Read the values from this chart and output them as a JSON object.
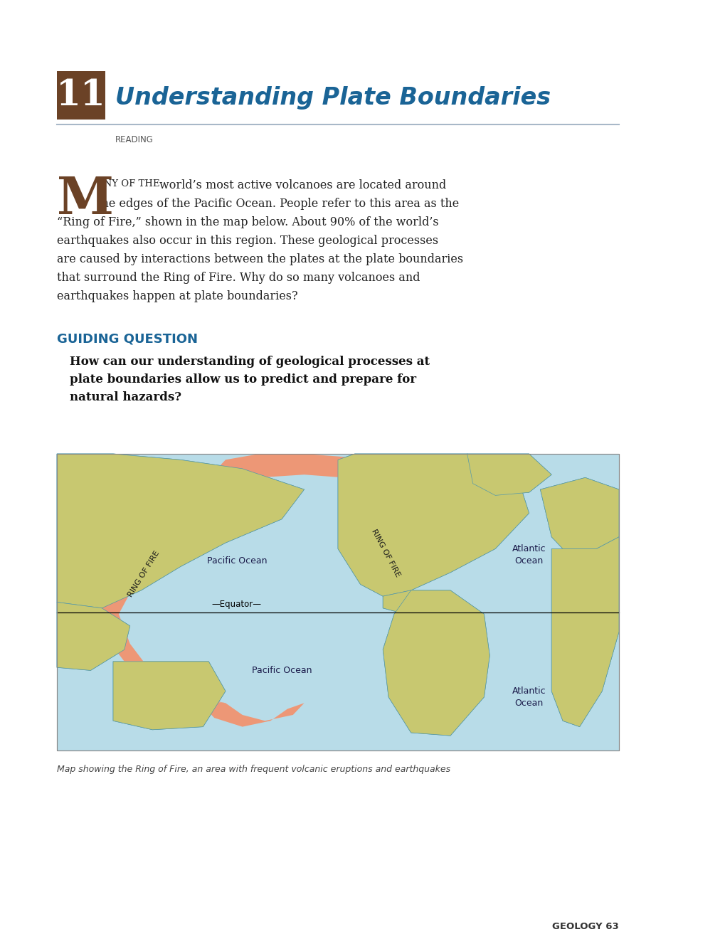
{
  "page_bg": "#ffffff",
  "title_number": "11",
  "title_number_bg": "#6b4226",
  "title_number_color": "#ffffff",
  "title_text": "Understanding Plate Boundaries",
  "title_color": "#1a6496",
  "subtitle_label": "READING",
  "subtitle_color": "#555555",
  "line_color": "#a8b8c8",
  "drop_cap": "M",
  "drop_cap_color": "#6b4226",
  "body_lines": [
    "ANY OF THE world’s most active volcanoes are located around",
    "the edges of the Pacific Ocean. People refer to this area as the",
    "“Ring of Fire,” shown in the map below. About 90% of the world’s",
    "earthquakes also occur in this region. These geological processes",
    "are caused by interactions between the plates at the plate boundaries",
    "that surround the Ring of Fire. Why do so many volcanoes and",
    "earthquakes happen at plate boundaries?"
  ],
  "guiding_label": "GUIDING QUESTION",
  "guiding_color": "#1a6496",
  "guiding_question": "How can our understanding of geological processes at\nplate boundaries allow us to predict and prepare for\nnatural hazards?",
  "caption": "Map showing the Ring of Fire, an area with frequent volcanic eruptions and earthquakes",
  "map_ocean_color": "#b8dce8",
  "map_land_color": "#c8c870",
  "map_ring_color": "#f4906a",
  "map_edge_color": "#5599aa",
  "footer_text": "GEOLOGY 63",
  "footer_color": "#333333"
}
